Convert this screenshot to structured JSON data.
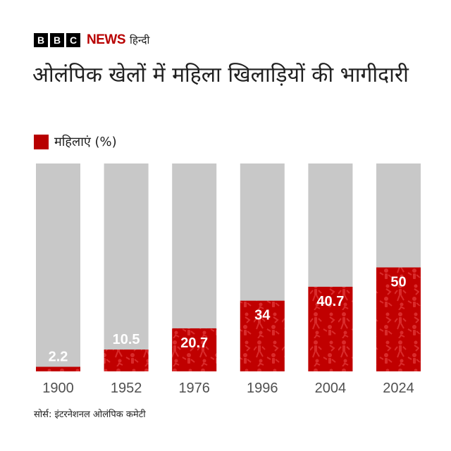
{
  "branding": {
    "bbc_letters": [
      "B",
      "B",
      "C"
    ],
    "news": "NEWS",
    "language": "हिन्दी"
  },
  "colors": {
    "accent": "#b80000",
    "track": "#c8c8c8",
    "pattern": "#ce1d1d",
    "text": "#202020"
  },
  "source": "सोर्स: इंटरनेशनल ओलंपिक कमेटी",
  "chart_data": {
    "type": "bar",
    "title": "ओलंपिक खेलों में महिला खिलाड़ियों की भागीदारी",
    "categories": [
      "1900",
      "1952",
      "1976",
      "1996",
      "2004",
      "2024"
    ],
    "series": [
      {
        "name": "महिलाएं (%)",
        "values": [
          2.2,
          10.5,
          20.7,
          34,
          40.7,
          50
        ]
      }
    ],
    "value_labels": [
      "2.2",
      "10.5",
      "20.7",
      "34",
      "40.7",
      "50"
    ],
    "ylim": [
      0,
      100
    ],
    "grid": false,
    "legend": "top-left"
  }
}
